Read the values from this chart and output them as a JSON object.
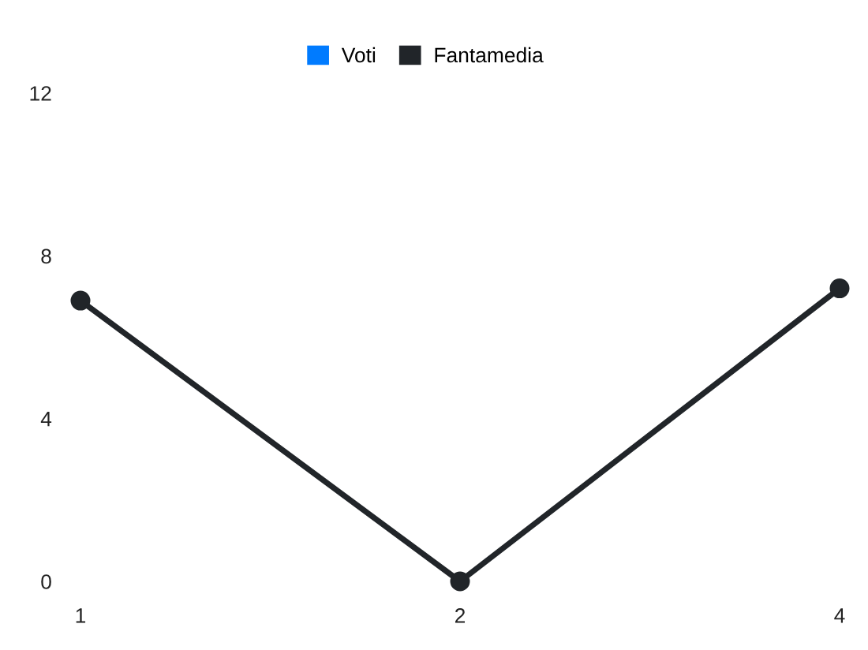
{
  "chart_data": {
    "type": "line",
    "categories": [
      "1",
      "2",
      "4"
    ],
    "series": [
      {
        "name": "Voti",
        "color": "#007bff",
        "values": [
          null,
          null,
          null
        ]
      },
      {
        "name": "Fantamedia",
        "color": "#212529",
        "values": [
          6.9,
          0,
          7.2
        ]
      }
    ],
    "ylim": [
      0,
      12
    ],
    "yticks": [
      0,
      4,
      8,
      12
    ],
    "legend": "top",
    "marker": "circle"
  }
}
